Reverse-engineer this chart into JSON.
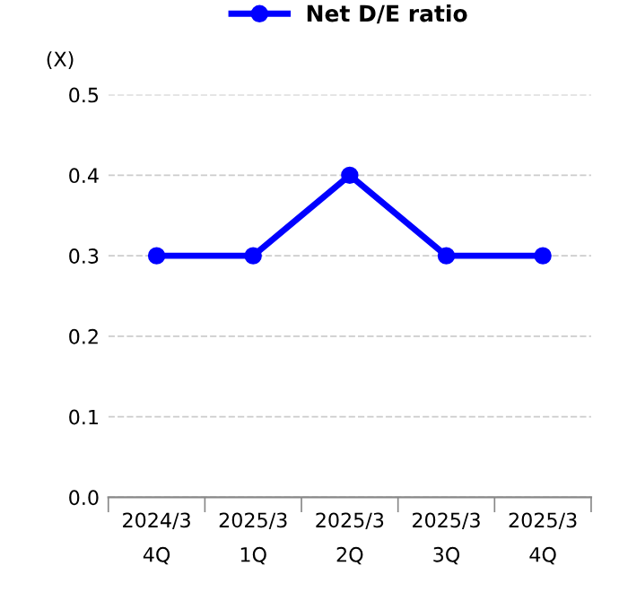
{
  "chart_data": {
    "type": "line",
    "ylabel": "(X)",
    "categories": [
      "2024/3\n4Q",
      "2025/3\n1Q",
      "2025/3\n2Q",
      "2025/3\n3Q",
      "2025/3\n4Q"
    ],
    "series": [
      {
        "name": "Net D/E ratio",
        "color": "#0000ff",
        "values": [
          0.3,
          0.3,
          0.4,
          0.3,
          0.3
        ]
      }
    ],
    "ylim": [
      0,
      0.5
    ],
    "yticks": [
      {
        "value": 0,
        "label": "0.0"
      },
      0.1,
      0.2,
      0.3,
      0.4,
      0.5
    ],
    "grid": "y",
    "legend": "top",
    "marker": "circle",
    "line_style": "solid"
  }
}
